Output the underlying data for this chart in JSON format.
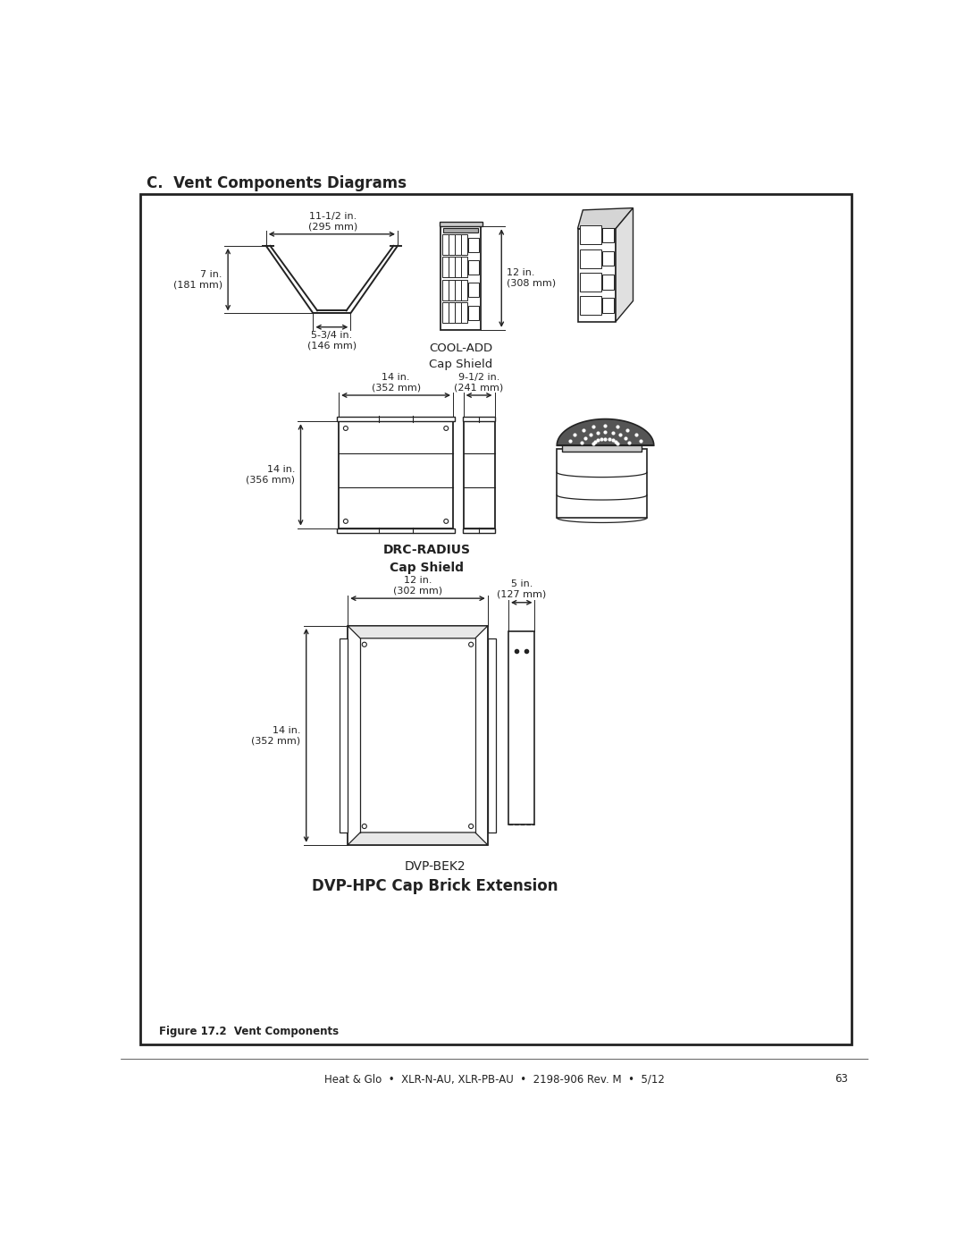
{
  "page_title": "C.  Vent Components Diagrams",
  "footer_text": "Heat & Glo  •  XLR-N-AU, XLR-PB-AU  •  2198-906 Rev. M  •  5/12",
  "footer_page": "63",
  "figure_caption": "Figure 17.2  Vent Components",
  "bg_color": "#ffffff",
  "border_color": "#222222",
  "text_color": "#222222",
  "diagram1": {
    "title1": "COOL-ADD",
    "title2": "Cap Shield",
    "dim_top": "11-1/2 in.\n(295 mm)",
    "dim_left": "7 in.\n(181 mm)",
    "dim_bottom": "5-3/4 in.\n(146 mm)",
    "dim_right": "12 in.\n(308 mm)"
  },
  "diagram2": {
    "title1": "DRC-RADIUS",
    "title2": "Cap Shield",
    "dim_top_left": "14 in.\n(352 mm)",
    "dim_top_right": "9-1/2 in.\n(241 mm)",
    "dim_left": "14 in.\n(356 mm)"
  },
  "diagram3": {
    "title1": "DVP-BEK2",
    "title2": "DVP-HPC Cap Brick Extension",
    "dim_top": "12 in.\n(302 mm)",
    "dim_left": "14 in.\n(352 mm)",
    "dim_right_top": "5 in.\n(127 mm)"
  }
}
